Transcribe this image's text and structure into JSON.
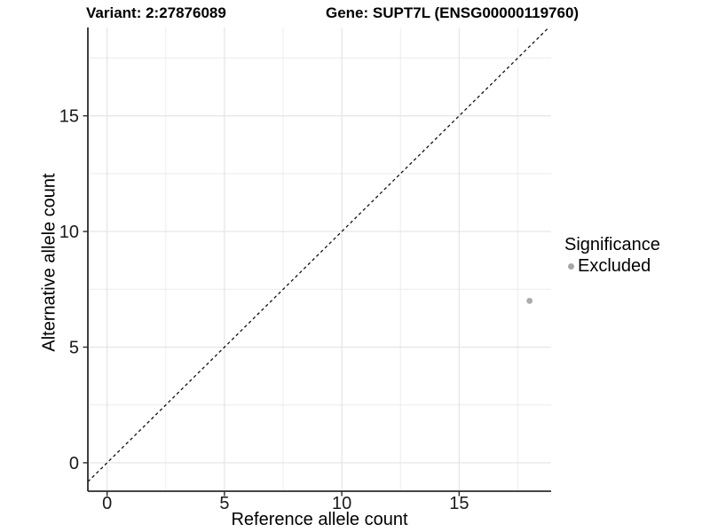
{
  "header": {
    "variant_title": "Variant: 2:27876089",
    "gene_title": "Gene: SUPT7L (ENSG00000119760)"
  },
  "legend": {
    "title": "Significance",
    "items": [
      {
        "label": "Excluded",
        "color": "#a6a6a6"
      }
    ]
  },
  "colors": {
    "background": "#ffffff",
    "grid_major": "#e4e4e4",
    "grid_minor": "#ececec",
    "axis_line": "#2b2b2b",
    "tick_text": "#1a1a1a",
    "identity_line": "#111111",
    "point": "#acacac"
  },
  "chart_data": {
    "type": "scatter",
    "title": "Variant: 2:27876089 | Gene: SUPT7L (ENSG00000119760)",
    "xlabel": "Reference allele count",
    "ylabel": "Alternative allele count",
    "xlim": [
      -0.82,
      18.92
    ],
    "ylim": [
      -1.23,
      18.82
    ],
    "x_ticks": [
      0,
      5,
      10,
      15
    ],
    "y_ticks": [
      0,
      5,
      10,
      15
    ],
    "x_minor_ticks": [
      2.5,
      7.5,
      12.5,
      17.5
    ],
    "y_minor_ticks": [
      2.5,
      7.5,
      12.5,
      17.5
    ],
    "grid": true,
    "legend_title": "Significance",
    "legend_position": "right",
    "series": [
      {
        "name": "Excluded",
        "color": "#acacac",
        "marker_radius": 3.4,
        "points": [
          {
            "x": 18,
            "y": 7
          }
        ]
      }
    ],
    "reference_line": {
      "kind": "identity",
      "equation": "y = x",
      "style": "dashed",
      "color": "#111111"
    }
  }
}
